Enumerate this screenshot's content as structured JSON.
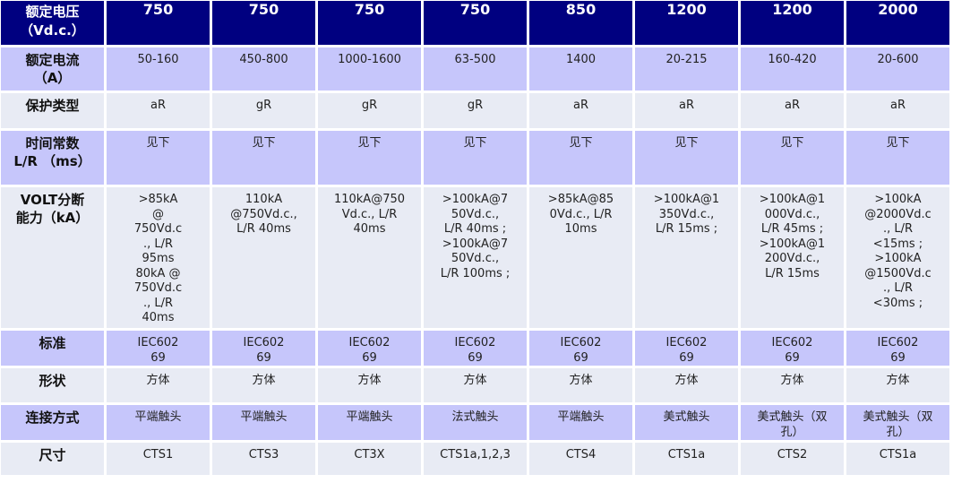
{
  "table": {
    "header": {
      "label": "额定电压\n（Vd.c.）",
      "values": [
        "750",
        "750",
        "750",
        "750",
        "850",
        "1200",
        "1200",
        "2000"
      ]
    },
    "rows": [
      {
        "label": "额定电流\n（A）",
        "values": [
          "50-160",
          "450-800",
          "1000-1600",
          "63-500",
          "1400",
          "20-215",
          "160-420",
          "20-600"
        ]
      },
      {
        "label": "保护类型",
        "values": [
          "aR",
          "gR",
          "gR",
          "gR",
          "aR",
          "aR",
          "aR",
          "aR"
        ]
      },
      {
        "label": "时间常数\nL/R （ms）",
        "values": [
          "见下",
          "见下",
          "见下",
          "见下",
          "见下",
          "见下",
          "见下",
          "见下"
        ]
      },
      {
        "label": "VOLT分断\n能力（kA）",
        "values": [
          ">85kA\n@\n750Vd.c\n., L/R\n95ms\n80kA @\n750Vd.c\n., L/R\n40ms",
          "110kA\n@750Vd.c.,\nL/R 40ms",
          "110kA@750\nVd.c., L/R\n40ms",
          ">100kA@7\n50Vd.c.,\nL/R 40ms ;\n>100kA@7\n50Vd.c.,\nL/R 100ms ;",
          ">85kA@85\n0Vd.c., L/R\n10ms",
          ">100kA@1\n350Vd.c.,\nL/R 15ms ;",
          ">100kA@1\n000Vd.c.,\nL/R 45ms ;\n>100kA@1\n200Vd.c.,\nL/R 15ms",
          ">100kA\n@2000Vd.c\n., L/R\n<15ms ;\n>100kA\n@1500Vd.c\n., L/R\n<30ms ;"
        ]
      },
      {
        "label": "标准",
        "values": [
          "IEC602\n69",
          "IEC602\n69",
          "IEC602\n69",
          "IEC602\n69",
          "IEC602\n69",
          "IEC602\n69",
          "IEC602\n69",
          "IEC602\n69"
        ]
      },
      {
        "label": "形状",
        "values": [
          "方体",
          "方体",
          "方体",
          "方体",
          "方体",
          "方体",
          "方体",
          "方体"
        ]
      },
      {
        "label": "连接方式",
        "values": [
          "平端触头",
          "平端触头",
          "平端触头",
          "法式触头",
          "平端触头",
          "美式触头",
          "美式触头（双\n孔）",
          "美式触头（双\n孔）"
        ]
      },
      {
        "label": "尺寸",
        "values": [
          "CTS1",
          "CTS3",
          "CT3X",
          "CTS1a,1,2,3",
          "CTS4",
          "CTS1a",
          "CTS2",
          "CTS1a"
        ]
      }
    ]
  },
  "colors": {
    "header": "#000080",
    "row_a": "#c6c6fb",
    "row_b": "#e8ebf4"
  }
}
